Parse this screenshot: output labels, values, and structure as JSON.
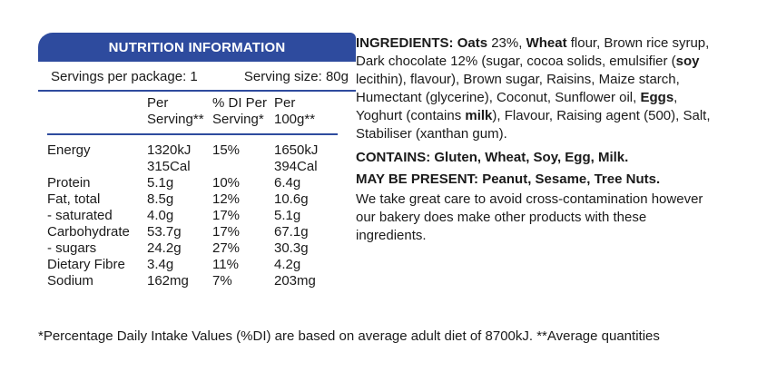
{
  "nutrition": {
    "title": "NUTRITION INFORMATION",
    "servings_per_package": "Servings per package: 1",
    "serving_size": "Serving size: 80g",
    "columns": [
      "",
      "Per Serving**",
      "% DI Per Serving*",
      "Per 100g**"
    ],
    "rows": [
      {
        "name": "Energy",
        "per_serving": "1320kJ",
        "di": "15%",
        "per_100g": "1650kJ"
      },
      {
        "name": "",
        "per_serving": "315Cal",
        "di": "",
        "per_100g": "394Cal"
      },
      {
        "name": "Protein",
        "per_serving": "5.1g",
        "di": "10%",
        "per_100g": "6.4g"
      },
      {
        "name": "Fat, total",
        "per_serving": "8.5g",
        "di": "12%",
        "per_100g": "10.6g"
      },
      {
        "name": "- saturated",
        "per_serving": "4.0g",
        "di": "17%",
        "per_100g": "5.1g"
      },
      {
        "name": "Carbohydrate",
        "per_serving": "53.7g",
        "di": "17%",
        "per_100g": "67.1g"
      },
      {
        "name": "- sugars",
        "per_serving": "24.2g",
        "di": "27%",
        "per_100g": "30.3g"
      },
      {
        "name": "Dietary Fibre",
        "per_serving": "3.4g",
        "di": "11%",
        "per_100g": "4.2g"
      },
      {
        "name": "Sodium",
        "per_serving": "162mg",
        "di": "7%",
        "per_100g": "203mg"
      }
    ]
  },
  "ingredients": {
    "label": "INGREDIENTS:",
    "segments": [
      {
        "t": "Oats",
        "b": true
      },
      {
        "t": " 23%, ",
        "b": false
      },
      {
        "t": "Wheat",
        "b": true
      },
      {
        "t": " flour, Brown rice syrup, Dark chocolate 12% (sugar, cocoa solids, emulsifier (",
        "b": false
      },
      {
        "t": "soy",
        "b": true
      },
      {
        "t": " lecithin), flavour), Brown sugar, Raisins, Maize starch, Humectant (glycerine), Coconut, Sunflower oil, ",
        "b": false
      },
      {
        "t": "Eggs",
        "b": true
      },
      {
        "t": ", Yoghurt (contains ",
        "b": false
      },
      {
        "t": "milk",
        "b": true
      },
      {
        "t": "), Flavour, Raising agent (500), Salt, Stabiliser (xanthan gum).",
        "b": false
      }
    ]
  },
  "contains": "CONTAINS: Gluten, Wheat, Soy, Egg, Milk.",
  "may_be_present": "MAY BE PRESENT: Peanut, Sesame, Tree Nuts.",
  "care_statement": "We take great care to avoid cross-contamination however our bakery does make other products with these ingredients.",
  "footnote": "*Percentage Daily Intake Values (%DI) are based on average adult diet of 8700kJ. **Average quantities",
  "colors": {
    "banner": "#2e4b9e",
    "rule": "#2e4b9e"
  }
}
